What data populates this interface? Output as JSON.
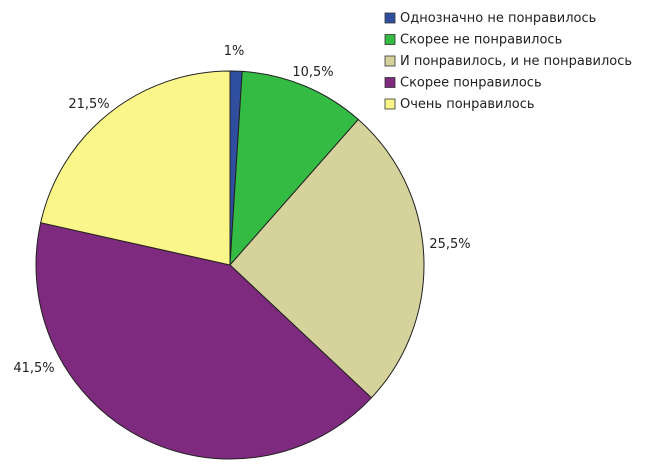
{
  "chart_data": {
    "type": "pie",
    "title": "",
    "categories": [
      "Однозначно не понравилось",
      "Скорее не понравилось",
      "И понравилось, и не понравилось",
      "Скорее понравилось",
      "Очень понравилось"
    ],
    "values": [
      1,
      10.5,
      25.5,
      41.5,
      21.5
    ],
    "data_labels": [
      "1%",
      "10,5%",
      "25,5%",
      "41,5%",
      "21,5%"
    ],
    "colors": [
      "#2f4f9e",
      "#33bb44",
      "#d6d29c",
      "#7e2a7e",
      "#fbf68a"
    ],
    "start_angle": "top",
    "direction": "clockwise",
    "legend": "top-right"
  }
}
